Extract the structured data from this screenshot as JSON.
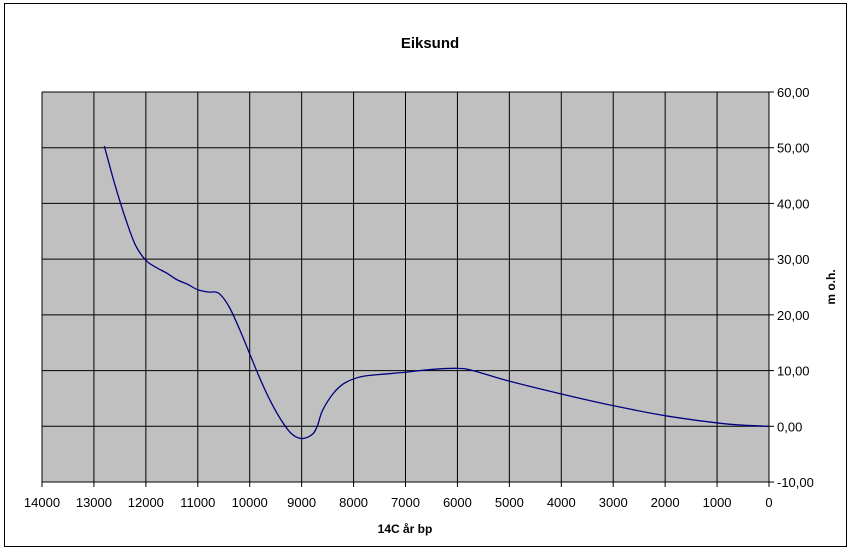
{
  "chart_data": {
    "type": "line",
    "title": "Eiksund",
    "xlabel": "14C år bp",
    "ylabel": "m o.h.",
    "xlim": [
      14000,
      0
    ],
    "ylim": [
      -10,
      60
    ],
    "x_ticks": [
      14000,
      13000,
      12000,
      11000,
      10000,
      9000,
      8000,
      7000,
      6000,
      5000,
      4000,
      3000,
      2000,
      1000,
      0
    ],
    "x_tick_labels": [
      "14000",
      "13000",
      "12000",
      "11000",
      "10000",
      "9000",
      "8000",
      "7000",
      "6000",
      "5000",
      "4000",
      "3000",
      "2000",
      "1000",
      "0"
    ],
    "y_ticks": [
      -10,
      0,
      10,
      20,
      30,
      40,
      50,
      60
    ],
    "y_tick_labels": [
      "-10,00",
      "0,00",
      "10,00",
      "20,00",
      "30,00",
      "40,00",
      "50,00",
      "60,00"
    ],
    "y_axis_side": "right",
    "grid": true,
    "legend": "none",
    "colors": {
      "plot_bg": "#c0c0c0",
      "line": "#000080",
      "grid": "#000000"
    },
    "series": [
      {
        "x": [
          12800,
          12600,
          12400,
          12200,
          12000,
          11800,
          11600,
          11400,
          11200,
          11000,
          10800,
          10600,
          10400,
          10200,
          10000,
          9800,
          9600,
          9400,
          9200,
          9000,
          8800,
          8700,
          8600,
          8400,
          8200,
          8000,
          7800,
          7500,
          7000,
          6500,
          6000,
          5700,
          5000,
          4000,
          3000,
          2000,
          1000,
          500,
          0
        ],
        "y": [
          50.3,
          43.5,
          37.5,
          32.5,
          29.8,
          28.5,
          27.5,
          26.3,
          25.5,
          24.5,
          24.1,
          23.9,
          21.5,
          17.5,
          13,
          8.5,
          4.5,
          1.2,
          -1.3,
          -2.2,
          -1.5,
          0,
          2.8,
          5.8,
          7.6,
          8.5,
          9,
          9.3,
          9.7,
          10.2,
          10.4,
          10,
          8.1,
          5.8,
          3.7,
          1.9,
          0.6,
          0.2,
          0
        ]
      }
    ]
  }
}
